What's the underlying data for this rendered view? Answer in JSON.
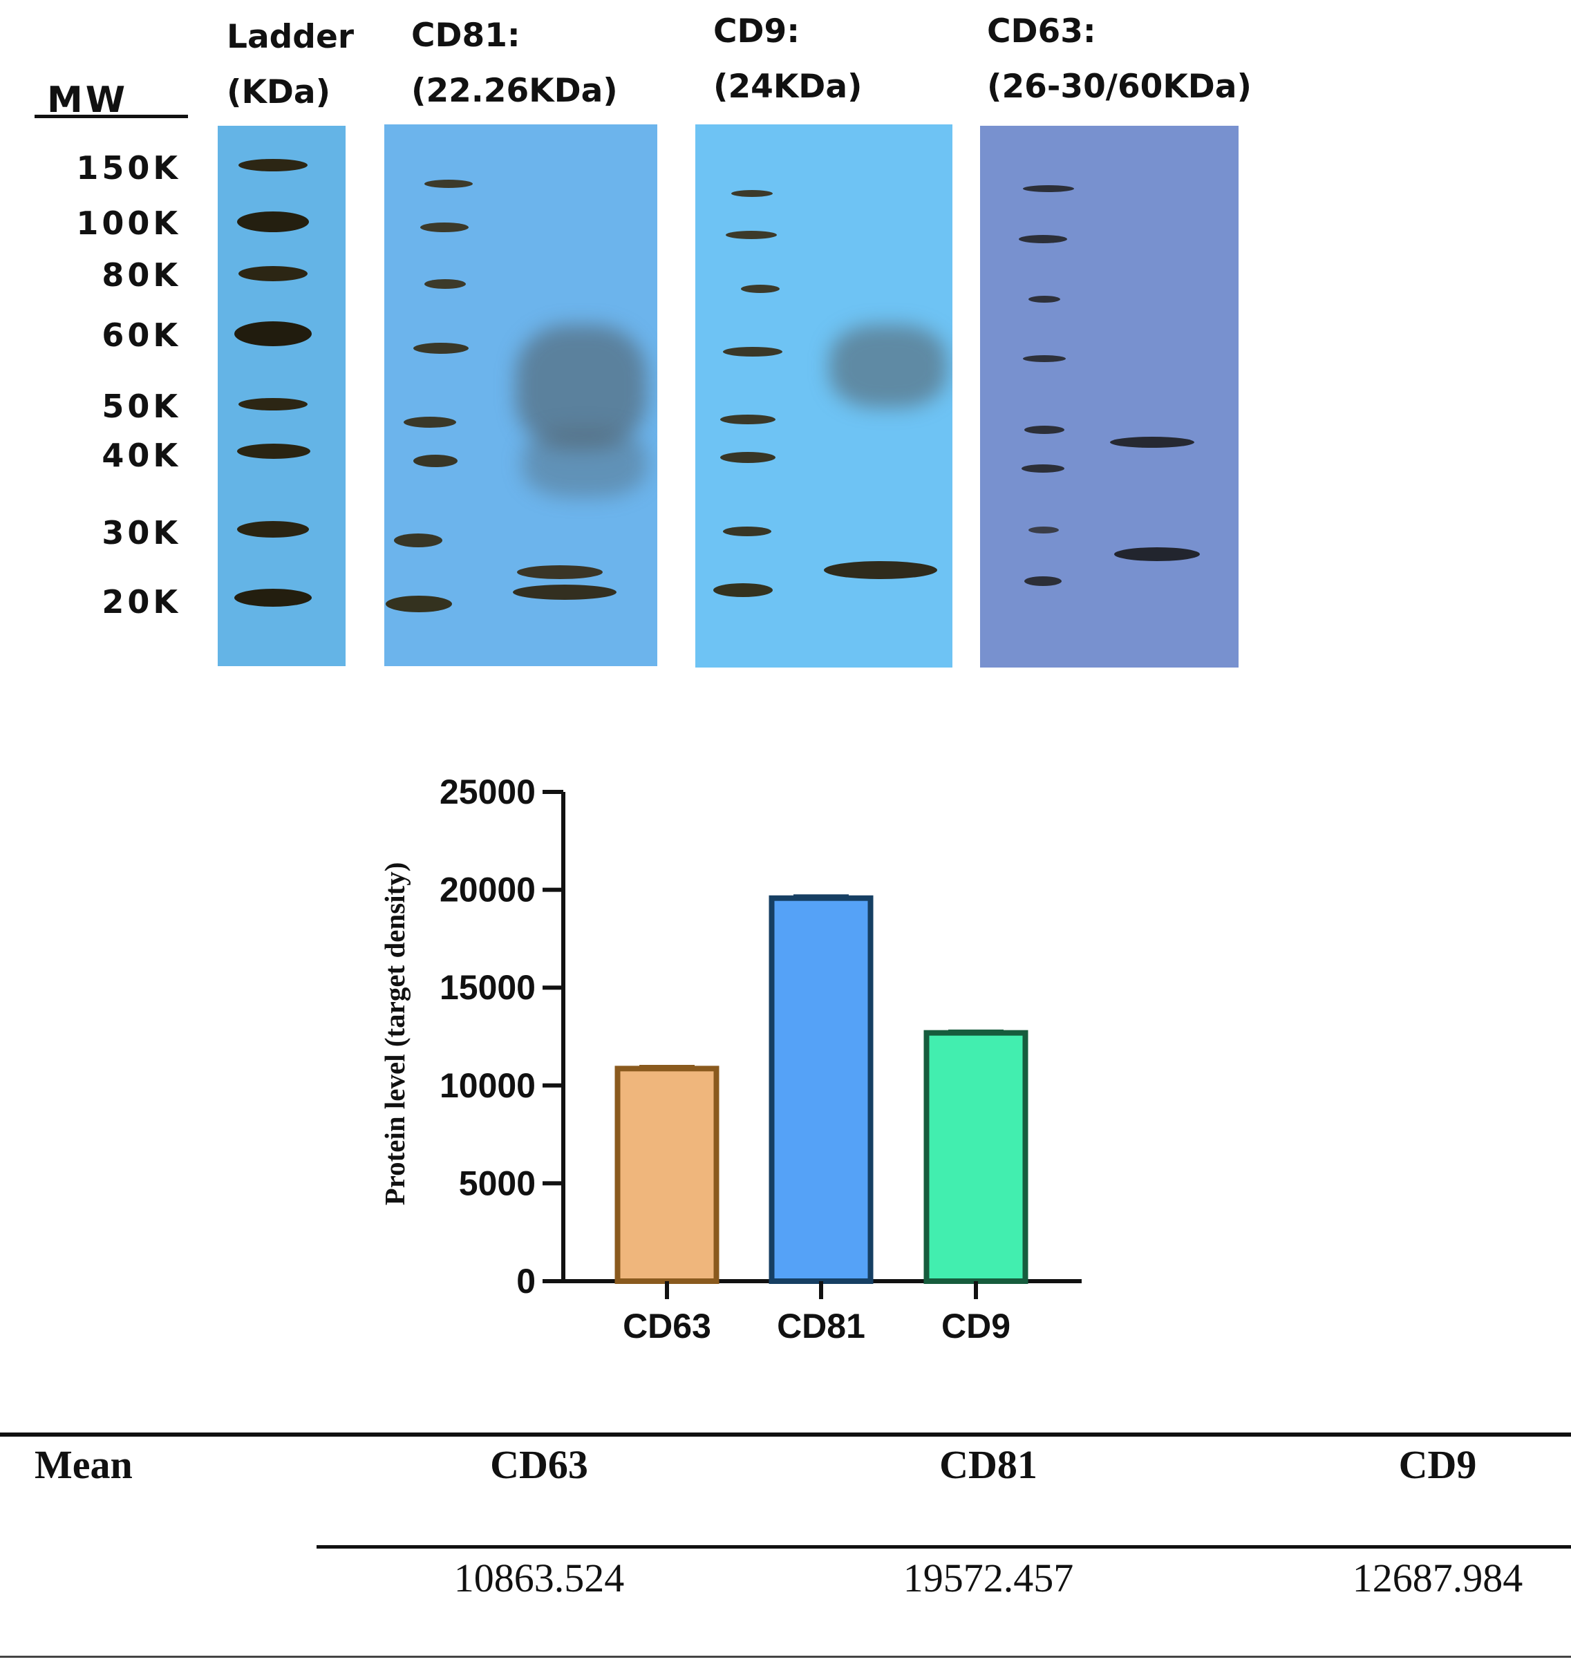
{
  "blot": {
    "mw_title": "MW",
    "mw_markers": [
      "150K",
      "100K",
      "80K",
      "60K",
      "50K",
      "40K",
      "30K",
      "20K"
    ],
    "headers": {
      "ladder": [
        "Ladder",
        "(KDa)"
      ],
      "cd81": [
        "CD81:",
        "(22.26KDa)"
      ],
      "cd9": [
        "CD9:",
        "(24KDa)"
      ],
      "cd63": [
        "CD63:",
        "(26-30/60KDa)"
      ]
    }
  },
  "chart_data": {
    "type": "bar",
    "categories": [
      "CD63",
      "CD81",
      "CD9"
    ],
    "values": [
      10863.524,
      19572.457,
      12687.984
    ],
    "error": [
      120,
      120,
      100
    ],
    "ylabel": "Protein level (target density)",
    "xlabel": "",
    "ylim": [
      0,
      25000
    ],
    "yticks": [
      0,
      5000,
      10000,
      15000,
      20000,
      25000
    ],
    "colors": {
      "CD63": {
        "fill": "#efb67c",
        "edge": "#8a5a1e"
      },
      "CD81": {
        "fill": "#55a2f7",
        "edge": "#163f63"
      },
      "CD9": {
        "fill": "#42eeaf",
        "edge": "#165c3d"
      }
    },
    "grid": false
  },
  "table": {
    "row_label": "Mean",
    "headers": [
      "CD63",
      "CD81",
      "CD9"
    ],
    "values": [
      "10863.524",
      "19572.457",
      "12687.984"
    ]
  }
}
